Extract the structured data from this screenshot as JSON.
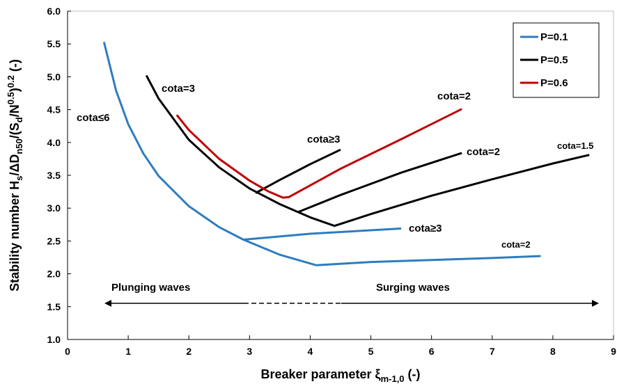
{
  "chart_data": {
    "type": "line",
    "xlabel": [
      "Breaker parameter ξ",
      "m-1,0",
      " (-)"
    ],
    "ylabel": [
      "Stability number H",
      "s",
      "/ΔD",
      "n50",
      "/(S",
      "d",
      "/N",
      "0.5",
      ")",
      "0.2",
      " (-)"
    ],
    "xlim": [
      0,
      9
    ],
    "ylim": [
      1,
      6
    ],
    "xticks": [
      0,
      1,
      2,
      3,
      4,
      5,
      6,
      7,
      8,
      9
    ],
    "yticks": [
      {
        "value": 1,
        "label": "1.0"
      },
      1.5,
      {
        "value": 2,
        "label": "2.0"
      },
      2.5,
      {
        "value": 3,
        "label": "3.0"
      },
      3.5,
      {
        "value": 4,
        "label": "4.0"
      },
      4.5,
      {
        "value": 5,
        "label": "5.0"
      },
      5.5,
      {
        "value": 6,
        "label": "6.0"
      }
    ],
    "grid": false,
    "legend": "upper right",
    "series": [
      {
        "name": "P=0.1",
        "color": "#2e7cc0",
        "x": [
          0.6,
          0.8,
          1.0,
          1.25,
          1.5,
          2,
          2.5,
          2.9,
          3.5,
          4.1,
          null,
          4.1,
          5,
          6,
          7,
          7.8,
          null,
          2.9,
          4,
          5.5
        ],
        "values": [
          5.53,
          4.79,
          4.28,
          3.83,
          3.49,
          3.03,
          2.71,
          2.52,
          2.29,
          2.13,
          null,
          2.13,
          2.18,
          2.21,
          2.24,
          2.27,
          null,
          2.52,
          2.61,
          2.69
        ]
      },
      {
        "name": "P=0.5",
        "color": "#000000",
        "x": [
          1.3,
          1.5,
          2,
          2.5,
          3,
          3.5,
          4,
          4.4,
          5,
          6,
          7,
          8,
          8.6,
          null,
          3.8,
          4.5,
          5.5,
          6.5,
          null,
          3.1,
          3.5,
          4,
          4.5
        ],
        "values": [
          5.02,
          4.67,
          4.04,
          3.62,
          3.3,
          3.06,
          2.86,
          2.73,
          2.91,
          3.19,
          3.44,
          3.68,
          3.81,
          null,
          2.94,
          3.2,
          3.54,
          3.84,
          null,
          3.23,
          3.43,
          3.67,
          3.89
        ]
      },
      {
        "name": "P=0.6",
        "color": "#c00000",
        "x": [
          1.8,
          2,
          2.5,
          3,
          3.3,
          3.55,
          3.65,
          4.5,
          5.5,
          6.5
        ],
        "values": [
          4.42,
          4.19,
          3.75,
          3.42,
          3.26,
          3.16,
          3.17,
          3.6,
          4.05,
          4.51
        ]
      }
    ],
    "annotations": [
      "cota≤6",
      "cota=3",
      "cota=2",
      "cota≥3",
      "cota=2",
      "cota=1.5",
      "cota≥3",
      "cota=2",
      "Plunging waves",
      "Surging waves"
    ]
  }
}
